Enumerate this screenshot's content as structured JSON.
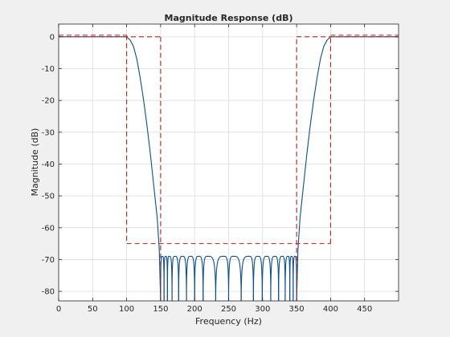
{
  "chart_data": {
    "type": "line",
    "title": "Magnitude Response (dB)",
    "xlabel": "Frequency (Hz)",
    "ylabel": "Magnitude (dB)",
    "xlim": [
      0,
      500
    ],
    "ylim": [
      -83,
      4
    ],
    "xticks": [
      0,
      50,
      100,
      150,
      200,
      250,
      300,
      350,
      400,
      450
    ],
    "yticks": [
      0,
      -10,
      -20,
      -30,
      -40,
      -50,
      -60,
      -70,
      -80
    ],
    "grid": true,
    "colors": {
      "response": "#0b4f8a",
      "mask": "#b22222",
      "grid": "#dcdcdc",
      "axes_bg": "#ffffff"
    },
    "series": [
      {
        "kind": "response",
        "passband_low": {
          "x": [
            0,
            20,
            40,
            60,
            80,
            95,
            100
          ],
          "y": [
            0,
            0,
            0,
            0,
            0,
            0,
            0
          ]
        },
        "transition_low": {
          "x": [
            100,
            105,
            110,
            115,
            120,
            125,
            130,
            135,
            140,
            145,
            148,
            150
          ],
          "y": [
            0,
            -1,
            -3,
            -7,
            -13,
            -20,
            -28,
            -37,
            -47,
            -57,
            -67,
            -83
          ]
        },
        "stopband_lobe_centers": [
          152.5,
          157.5,
          162.5,
          171,
          182,
          194,
          206,
          219,
          243,
          257,
          280,
          293,
          306,
          318,
          329,
          337.5,
          342.5,
          347.5
        ],
        "stopband_peak": -69,
        "transition_high": {
          "x": [
            350,
            352,
            355,
            360,
            365,
            370,
            375,
            380,
            385,
            390,
            395,
            400
          ],
          "y": [
            -83,
            -67,
            -57,
            -47,
            -37,
            -28,
            -20,
            -13,
            -7,
            -3,
            -1,
            0
          ]
        },
        "passband_high": {
          "x": [
            400,
            420,
            440,
            460,
            480,
            500
          ],
          "y": [
            0,
            0,
            0,
            0,
            0,
            0
          ]
        }
      },
      {
        "kind": "mask",
        "segments": [
          {
            "x": [
              0,
              100
            ],
            "y": [
              0.5,
              0.5
            ]
          },
          {
            "x": [
              0,
              150
            ],
            "y": [
              0,
              0
            ]
          },
          {
            "x": [
              150,
              150
            ],
            "y": [
              0,
              -83
            ]
          },
          {
            "x": [
              100,
              100
            ],
            "y": [
              0.5,
              -65
            ]
          },
          {
            "x": [
              100,
              400
            ],
            "y": [
              -65,
              -65
            ]
          },
          {
            "x": [
              400,
              400
            ],
            "y": [
              -65,
              0.5
            ]
          },
          {
            "x": [
              350,
              350
            ],
            "y": [
              -83,
              0
            ]
          },
          {
            "x": [
              350,
              500
            ],
            "y": [
              0,
              0
            ]
          },
          {
            "x": [
              400,
              500
            ],
            "y": [
              0.5,
              0.5
            ]
          }
        ]
      }
    ]
  }
}
